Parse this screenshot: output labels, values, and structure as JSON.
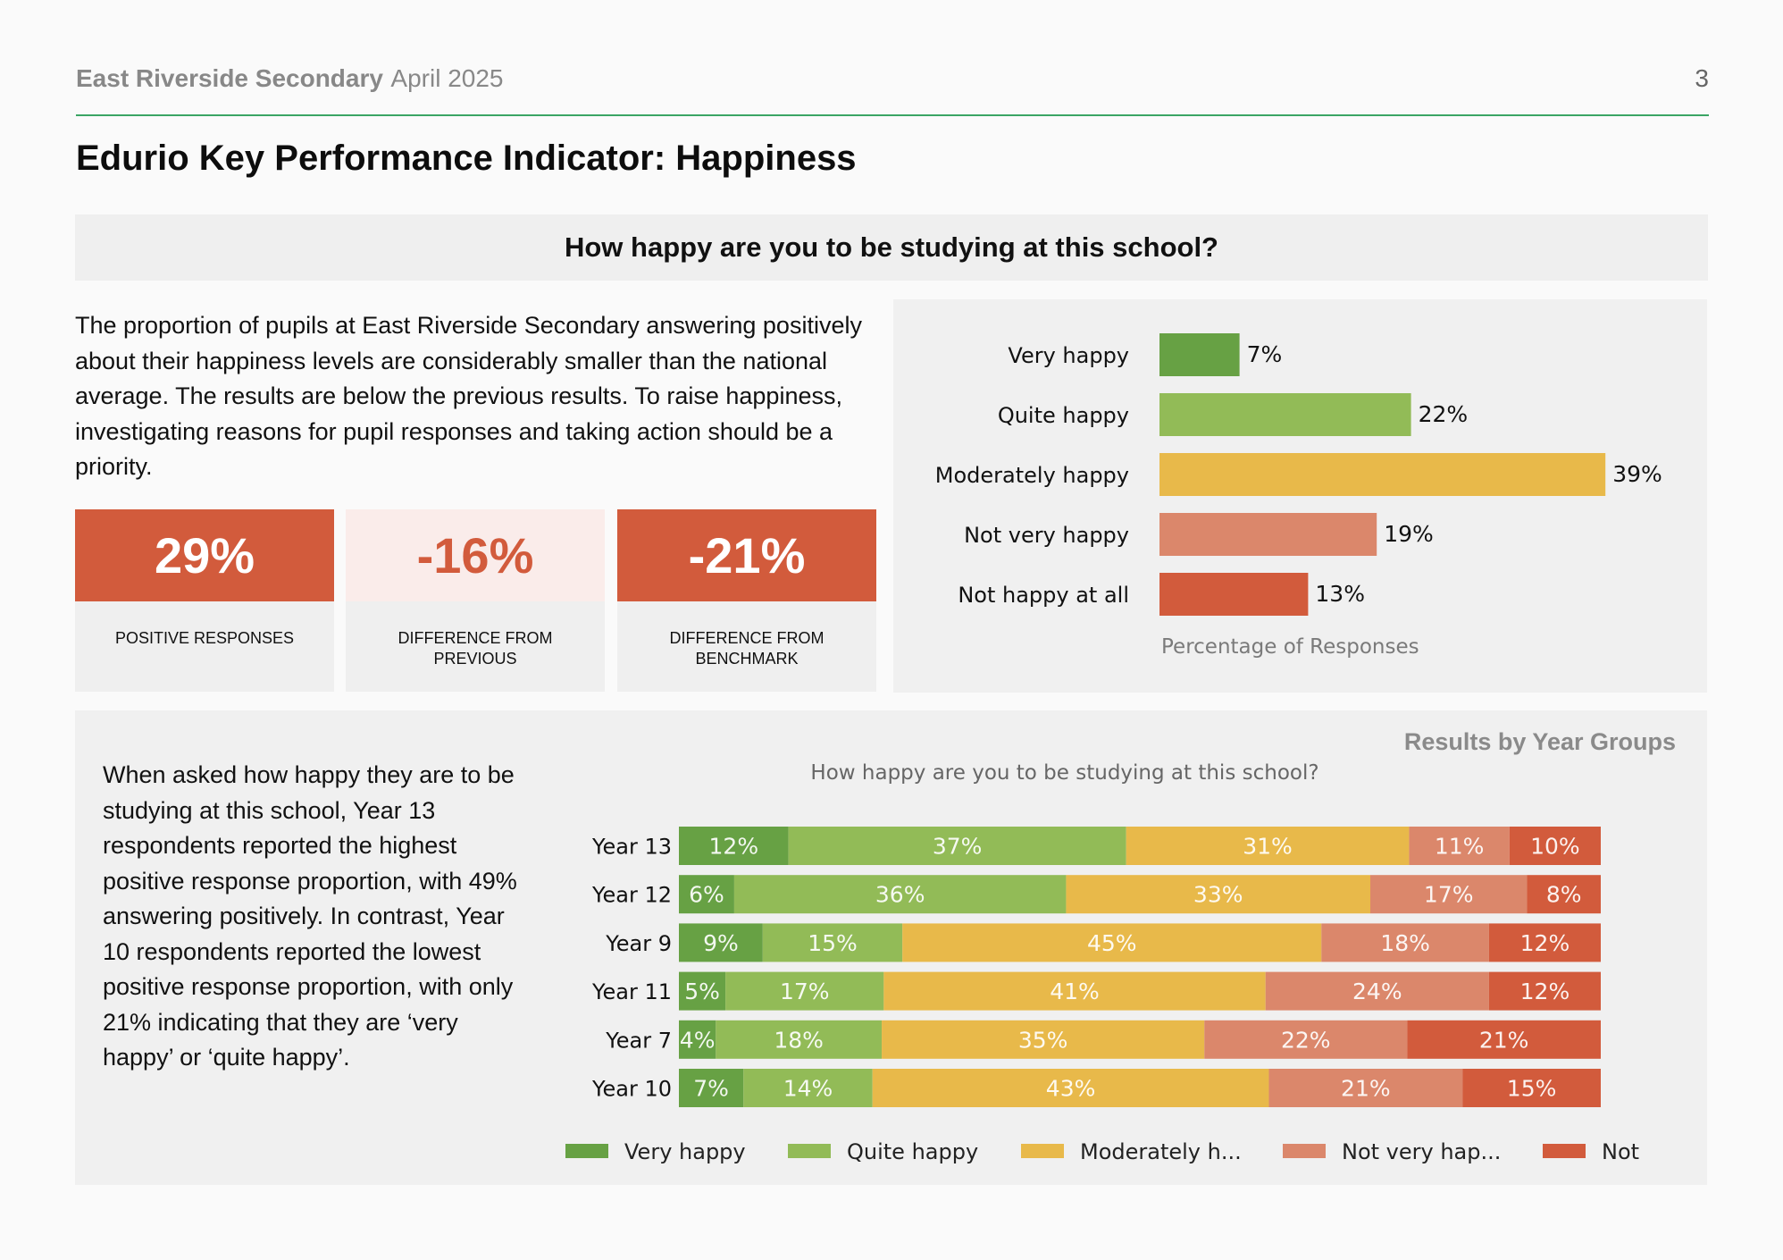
{
  "header": {
    "school": "East Riverside Secondary",
    "date": "April 2025",
    "page_number": "3"
  },
  "title": "Edurio Key Performance Indicator: Happiness",
  "question": "How happy are you to be studying at this school?",
  "summary": "The proportion of pupils at East Riverside Secondary answering positively  about their happiness levels are considerably smaller than the national average. The results are below the previous results. To raise happiness, investigating reasons for pupil responses and taking action should be a priority.",
  "kpis": [
    {
      "value": "29%",
      "label": "POSITIVE RESPONSES",
      "style": "strong"
    },
    {
      "value": "-16%",
      "label": "DIFFERENCE FROM PREVIOUS",
      "style": "soft"
    },
    {
      "value": "-21%",
      "label": "DIFFERENCE FROM BENCHMARK",
      "style": "strong"
    }
  ],
  "bottom_text": "When asked how happy they are to be studying at this school, Year 13 respondents reported the highest positive response proportion, with 49% answering positively. In contrast, Year 10 respondents reported the lowest positive response proportion, with only 21% indicating that they are ‘very happy’ or ‘quite happy’.",
  "results_title": "Results by Year Groups",
  "colors": {
    "very_happy": "#67a144",
    "quite_happy": "#92bb57",
    "moderately_happy": "#e8b94a",
    "not_very_happy": "#db876b",
    "not_happy": "#d25b3c"
  },
  "chart_data": [
    {
      "type": "bar",
      "orientation": "horizontal",
      "categories": [
        "Very happy",
        "Quite happy",
        "Moderately happy",
        "Not very happy",
        "Not happy at all"
      ],
      "values": [
        7,
        22,
        39,
        19,
        13
      ],
      "value_labels": [
        "7%",
        "22%",
        "39%",
        "19%",
        "13%"
      ],
      "colors": [
        "#67a144",
        "#92bb57",
        "#e8b94a",
        "#db876b",
        "#d25b3c"
      ],
      "xlabel": "Percentage of Responses",
      "xlim": [
        0,
        40
      ],
      "grid": false
    },
    {
      "type": "bar",
      "orientation": "horizontal",
      "stacked": true,
      "title": "How happy are you to be studying at this school?",
      "categories": [
        "Year 13",
        "Year 12",
        "Year 9",
        "Year 11",
        "Year 7",
        "Year 10"
      ],
      "series": [
        {
          "name": "Very happy",
          "color": "#67a144",
          "values": [
            12,
            6,
            9,
            5,
            4,
            7
          ]
        },
        {
          "name": "Quite happy",
          "color": "#92bb57",
          "values": [
            37,
            36,
            15,
            17,
            18,
            14
          ]
        },
        {
          "name": "Moderately h...",
          "color": "#e8b94a",
          "values": [
            31,
            33,
            45,
            41,
            35,
            43
          ]
        },
        {
          "name": "Not very hap...",
          "color": "#db876b",
          "values": [
            11,
            17,
            18,
            24,
            22,
            21
          ]
        },
        {
          "name": "Not",
          "color": "#d25b3c",
          "values": [
            10,
            8,
            12,
            12,
            21,
            15
          ]
        }
      ],
      "legend": "bottom",
      "grid": false
    }
  ]
}
